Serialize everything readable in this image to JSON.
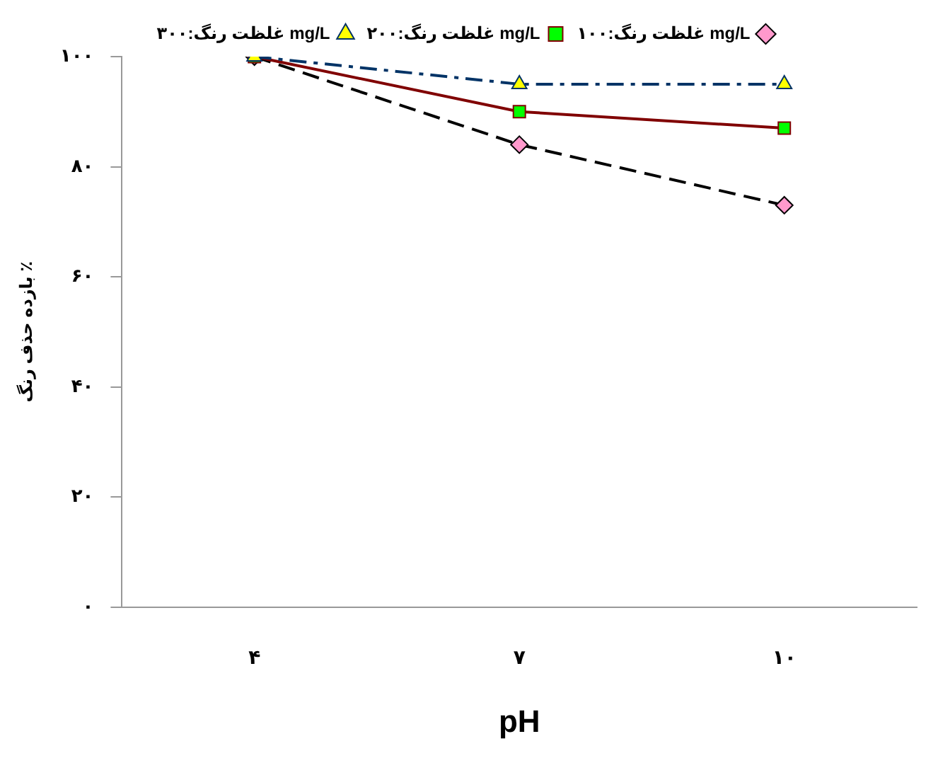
{
  "chart_data": {
    "type": "line",
    "xlabel": "pH",
    "ylabel": "بازده حذف رنگ ٪",
    "categories": [
      "۴",
      "۷",
      "۱۰"
    ],
    "ylim": [
      0,
      100
    ],
    "yticks": [
      {
        "value": 0,
        "label": "۰"
      },
      {
        "value": 20,
        "label": "۲۰"
      },
      {
        "value": 40,
        "label": "۴۰"
      },
      {
        "value": 60,
        "label": "۶۰"
      },
      {
        "value": 80,
        "label": "۸۰"
      },
      {
        "value": 100,
        "label": "۱۰۰"
      }
    ],
    "grid": false,
    "legend": "top",
    "series": [
      {
        "name": "غلظت رنگ:۱۰۰ mg/L",
        "color": "#000000",
        "marker": "diamond",
        "line_style": "dashed",
        "values": [
          100,
          84,
          73
        ]
      },
      {
        "name": "غلظت رنگ:۲۰۰ mg/L",
        "color": "#800000",
        "marker": "square",
        "line_style": "solid",
        "values": [
          100,
          90,
          87
        ]
      },
      {
        "name": "غلظت رنگ:۳۰۰ mg/L",
        "color": "#003366",
        "marker": "triangle",
        "line_style": "dashdot",
        "values": [
          100,
          95,
          95
        ]
      }
    ]
  }
}
